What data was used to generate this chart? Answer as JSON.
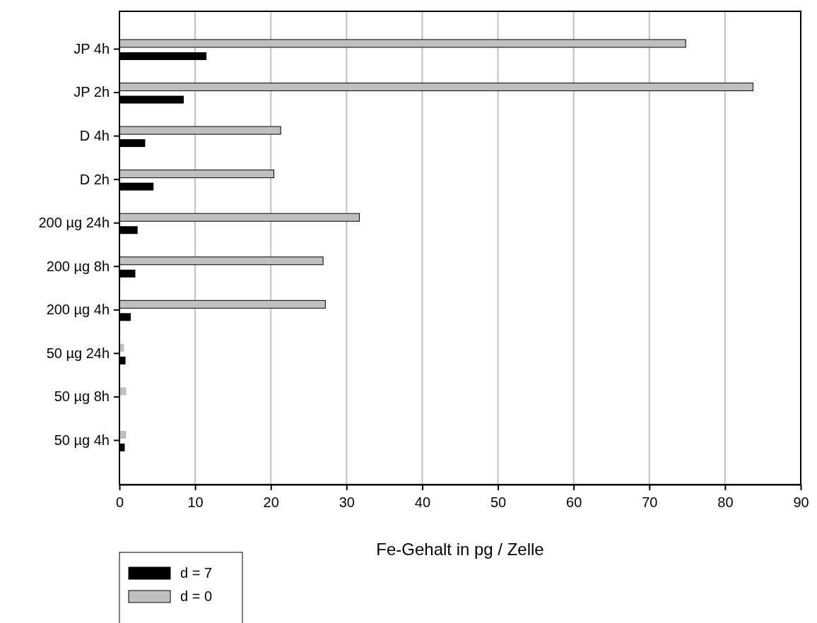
{
  "chart_data": {
    "type": "bar",
    "orientation": "horizontal",
    "xlabel": "Fe-Gehalt in pg / Zelle",
    "categories": [
      "JP 4h",
      "JP 2h",
      "D 4h",
      "D 2h",
      "200 µg 24h",
      "200 µg 8h",
      "200 µg 4h",
      "50 µg 24h",
      "50 µg 8h",
      "50 µg 4h"
    ],
    "series": [
      {
        "name": "d = 7",
        "color": "#000000",
        "values": [
          11.5,
          8.5,
          3.4,
          4.5,
          2.4,
          2.1,
          1.5,
          0.8,
          null,
          0.7
        ]
      },
      {
        "name": "d = 0",
        "color": "#c0c0c0",
        "values": [
          74.8,
          83.7,
          21.3,
          20.4,
          31.7,
          26.9,
          27.2,
          0.6,
          0.9,
          0.9
        ]
      }
    ],
    "xlim": [
      0,
      90
    ],
    "xticks": [
      0,
      10,
      20,
      30,
      40,
      50,
      60,
      70,
      80,
      90
    ],
    "grid": "x",
    "legend": "bottom left"
  }
}
